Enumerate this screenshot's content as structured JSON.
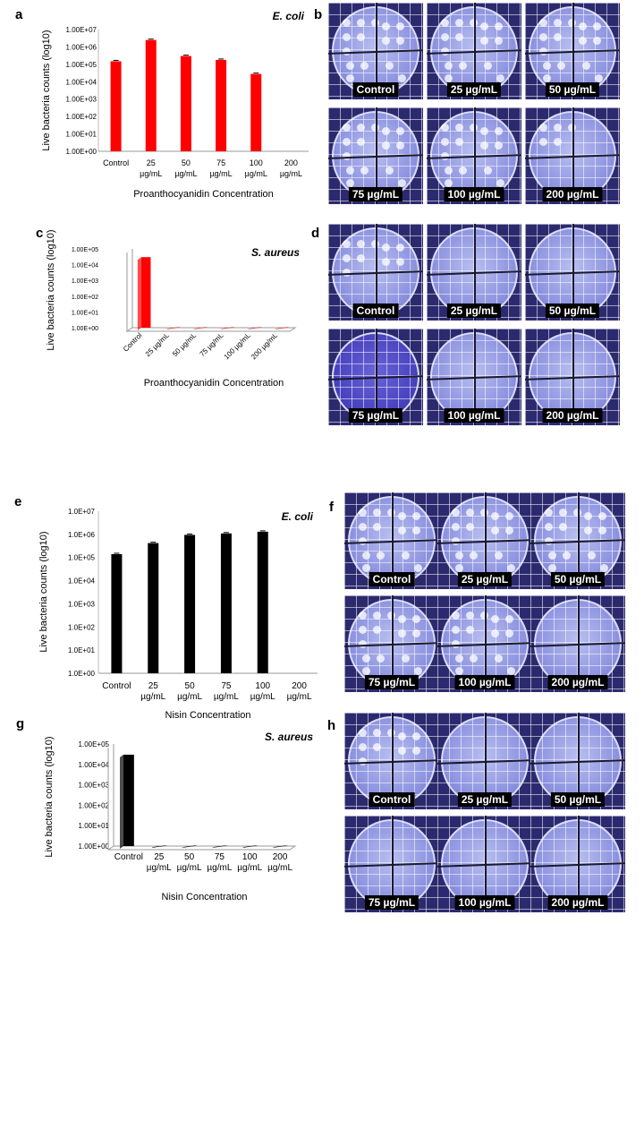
{
  "panels": {
    "a": "a",
    "b": "b",
    "c": "c",
    "d": "d",
    "e": "e",
    "f": "f",
    "g": "g",
    "h": "h"
  },
  "plate_labels": [
    "Control",
    "25 µg/mL",
    "50 µg/mL",
    "75 µg/mL",
    "100 µg/mL",
    "200 µg/mL"
  ],
  "plate_colony_levels": {
    "b": [
      3,
      3,
      3,
      3,
      3,
      1
    ],
    "d": [
      2,
      0,
      0,
      0,
      0,
      0
    ],
    "f": [
      3,
      3,
      3,
      3,
      3,
      0
    ],
    "h": [
      2,
      0,
      0,
      0,
      0,
      0
    ]
  },
  "colors": {
    "red_bar": "#ff0000",
    "black_bar": "#000000",
    "axis": "#888888",
    "plate_bg": "#2c2a6e"
  },
  "chart_data": [
    {
      "id": "a",
      "type": "bar",
      "organism": "E. coli",
      "title": "E. coli",
      "ylabel": "Live bacteria counts (log10)",
      "xlabel": "Proanthocyanidin Concentration",
      "categories": [
        "Control",
        "25 µg/mL",
        "50 µg/mL",
        "75 µg/mL",
        "100 µg/mL",
        "200 µg/mL"
      ],
      "values": [
        150000,
        2500000,
        300000,
        180000,
        28000,
        1
      ],
      "yticks": [
        "1.00E+00",
        "1.00E+01",
        "1.00E+02",
        "1.00E+03",
        "1.00E+04",
        "1.00E+05",
        "1.00E+06",
        "1.00E+07"
      ],
      "ylim": [
        1,
        10000000
      ],
      "scale": "log",
      "color": "#ff0000"
    },
    {
      "id": "c",
      "type": "bar",
      "organism": "S. aureus",
      "title": "S. aureus",
      "ylabel": "Live bacteria counts (log10)",
      "xlabel": "Proanthocyanidin Concentration",
      "categories": [
        "Control",
        "25 µg/mL",
        "50 µg/mL",
        "75 µg/mL",
        "100 µg/mL",
        "200 µg/mL"
      ],
      "values": [
        30000,
        1,
        1,
        1,
        1,
        1
      ],
      "yticks": [
        "1.00E+00",
        "1.00E+01",
        "1.00E+02",
        "1.00E+03",
        "1.00E+04",
        "1.00E+05"
      ],
      "ylim": [
        1,
        100000
      ],
      "scale": "log",
      "color": "#ff0000"
    },
    {
      "id": "e",
      "type": "bar",
      "organism": "E. coli",
      "title": "E. coli",
      "ylabel": "Live bacteria counts (log10)",
      "xlabel": "Nisin Concentration",
      "categories": [
        "Control",
        "25 µg/mL",
        "50 µg/mL",
        "75 µg/mL",
        "100 µg/mL",
        "200 µg/mL"
      ],
      "values": [
        140000,
        420000,
        950000,
        1100000,
        1300000,
        1
      ],
      "yticks": [
        "1.0E+00",
        "1.0E+01",
        "1.0E+02",
        "1.0E+03",
        "1.0E+04",
        "1.0E+05",
        "1.0E+06",
        "1.0E+07"
      ],
      "ylim": [
        1,
        10000000
      ],
      "scale": "log",
      "color": "#000000"
    },
    {
      "id": "g",
      "type": "bar",
      "organism": "S. aureus",
      "title": "S. aureus",
      "ylabel": "Live bacteria counts (log10)",
      "xlabel": "Nisin Concentration",
      "categories": [
        "Control",
        "25 µg/mL",
        "50 µg/mL",
        "75 µg/mL",
        "100 µg/mL",
        "200 µg/mL"
      ],
      "values": [
        30000,
        1,
        1,
        1,
        1,
        1
      ],
      "yticks": [
        "1.00E+00",
        "1.00E+01",
        "1.00E+02",
        "1.00E+03",
        "1.00E+04",
        "1.00E+05"
      ],
      "ylim": [
        1,
        100000
      ],
      "scale": "log",
      "color": "#000000"
    }
  ]
}
